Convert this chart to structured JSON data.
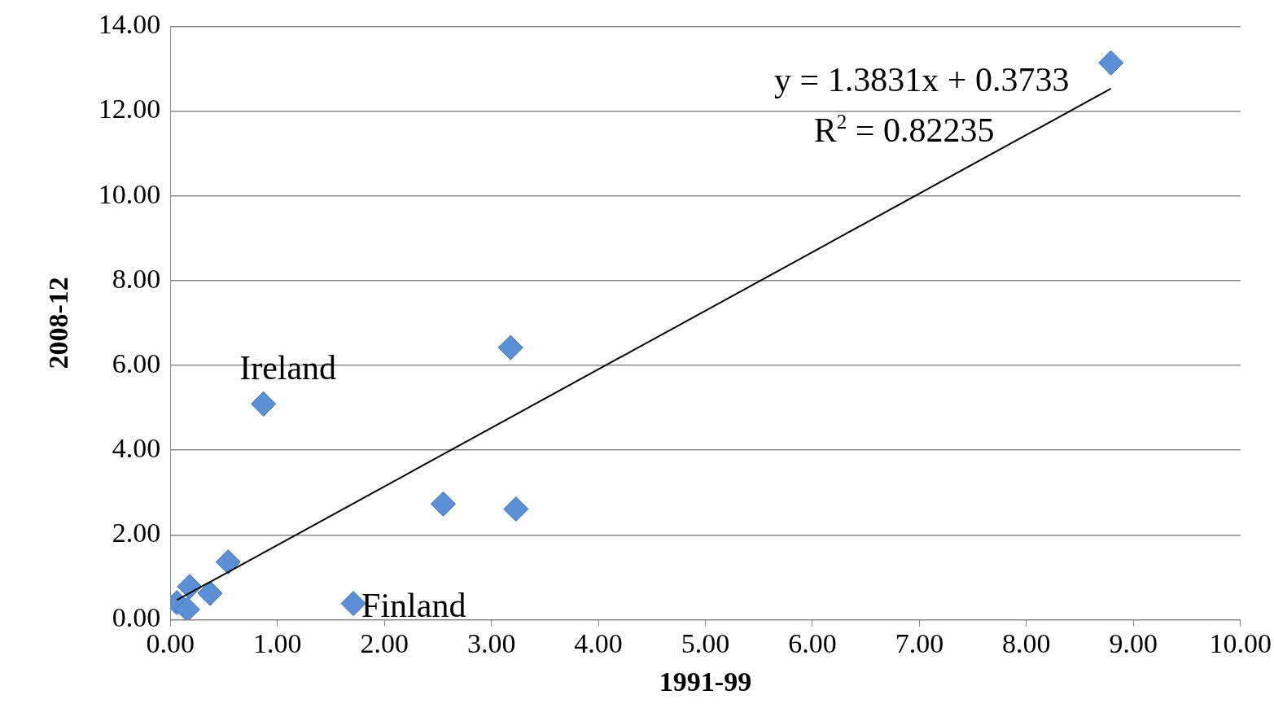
{
  "chart_data": {
    "type": "scatter",
    "xlabel": "1991-99",
    "ylabel": "2008-12",
    "series": [
      {
        "color": "#5b8fd6",
        "x": [
          8.79,
          3.18,
          0.87,
          2.55,
          3.23,
          1.71,
          0.54,
          0.18,
          0.37,
          0.06,
          0.16
        ],
        "values": [
          13.14,
          6.42,
          5.09,
          2.73,
          2.61,
          0.38,
          1.36,
          0.78,
          0.62,
          0.4,
          0.24
        ]
      },
      {
        "type": "line",
        "color": "#000000",
        "x": [
          0.06,
          8.79
        ],
        "values": [
          0.46,
          12.53
        ],
        "marker": "none"
      }
    ],
    "xlim": [
      0,
      10
    ],
    "ylim": [
      0,
      14
    ],
    "xticks": [
      {
        "value": 0,
        "label": "0.00"
      },
      {
        "value": 1,
        "label": "1.00"
      },
      {
        "value": 2,
        "label": "2.00"
      },
      {
        "value": 3,
        "label": "3.00"
      },
      {
        "value": 4,
        "label": "4.00"
      },
      {
        "value": 5,
        "label": "5.00"
      },
      {
        "value": 6,
        "label": "6.00"
      },
      {
        "value": 7,
        "label": "7.00"
      },
      {
        "value": 8,
        "label": "8.00"
      },
      {
        "value": 9,
        "label": "9.00"
      },
      {
        "value": 10,
        "label": "10.00"
      }
    ],
    "yticks": [
      {
        "value": 0,
        "label": "0.00"
      },
      {
        "value": 2,
        "label": "2.00"
      },
      {
        "value": 4,
        "label": "4.00"
      },
      {
        "value": 6,
        "label": "6.00"
      },
      {
        "value": 8,
        "label": "8.00"
      },
      {
        "value": 10,
        "label": "10.00"
      },
      {
        "value": 12,
        "label": "12.00"
      },
      {
        "value": 14,
        "label": "14.00"
      }
    ],
    "grid": "y",
    "legend": false,
    "marker": "diamond",
    "annotations": [
      "y = 1.3831x + 0.3733",
      "R$^{2}$ = 0.82235",
      {
        "text": "Ireland",
        "x": 0.87,
        "y": 5.09
      },
      {
        "text": "Finland",
        "x": 1.71,
        "y": 0.38
      }
    ]
  }
}
